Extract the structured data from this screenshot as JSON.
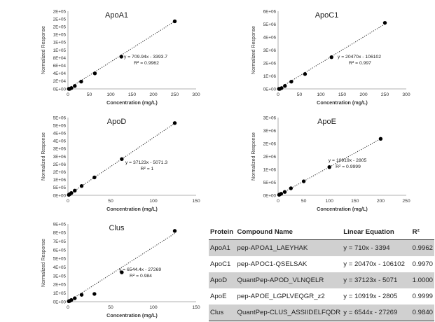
{
  "chart_data": [
    {
      "type": "scatter",
      "title": "ApoA1",
      "xlabel": "Concentration (mg/L)",
      "ylabel": "Normalized Response",
      "xlim": [
        0,
        300
      ],
      "ylim": [
        0,
        200000
      ],
      "x_ticks": [
        "0",
        "50",
        "100",
        "150",
        "200",
        "250",
        "300"
      ],
      "y_ticks": [
        "0E+00",
        "2E+04",
        "4E+04",
        "6E+04",
        "8E+04",
        "1E+05",
        "1E+05",
        "1E+05",
        "2E+05",
        "2E+05",
        "2E+05"
      ],
      "series": [
        {
          "x": [
            2,
            4,
            8,
            16,
            31,
            63,
            125,
            250
          ],
          "y": [
            0,
            0,
            2200,
            7500,
            18800,
            40000,
            83000,
            174000
          ]
        }
      ],
      "trendline": {
        "equation": "y = 709.94x - 3393.7",
        "r2": "R² = 0.9962",
        "slope": 709.94,
        "intercept": -3393.7
      },
      "grid": false
    },
    {
      "type": "scatter",
      "title": "ApoC1",
      "xlabel": "Concentration (mg/L)",
      "ylabel": "Normalized Response",
      "xlim": [
        0,
        300
      ],
      "ylim": [
        0,
        6000000
      ],
      "x_ticks": [
        "0",
        "50",
        "100",
        "150",
        "200",
        "250",
        "300"
      ],
      "y_ticks": [
        "0E+00",
        "1E+06",
        "2E+06",
        "3E+06",
        "4E+06",
        "5E+06",
        "6E+06"
      ],
      "series": [
        {
          "x": [
            2,
            4,
            8,
            16,
            31,
            63,
            125,
            250
          ],
          "y": [
            0,
            0,
            60000,
            230000,
            560000,
            1150000,
            2450000,
            5100000
          ]
        }
      ],
      "trendline": {
        "equation": "y = 20470x - 106102",
        "r2": "R² = 0.997",
        "slope": 20470,
        "intercept": -106102
      },
      "grid": false
    },
    {
      "type": "scatter",
      "title": "ApoD",
      "xlabel": "Concentration (mg/L)",
      "ylabel": "Normalized Response",
      "xlim": [
        0,
        150
      ],
      "ylim": [
        0,
        5000000
      ],
      "x_ticks": [
        "0",
        "50",
        "100",
        "150"
      ],
      "y_ticks": [
        "0E+00",
        "5E+05",
        "1E+06",
        "2E+06",
        "2E+06",
        "3E+06",
        "3E+06",
        "4E+06",
        "4E+06",
        "5E+06",
        "5E+06"
      ],
      "series": [
        {
          "x": [
            1,
            2,
            4,
            8,
            16,
            31,
            63,
            125
          ],
          "y": [
            30000,
            70000,
            150000,
            300000,
            600000,
            1150000,
            2330000,
            4650000
          ]
        }
      ],
      "trendline": {
        "equation": "y = 37123x - 5071.3",
        "r2": "R² = 1",
        "slope": 37123,
        "intercept": -5071.3
      },
      "grid": false
    },
    {
      "type": "scatter",
      "title": "ApoE",
      "xlabel": "Concentration (mg/L)",
      "ylabel": "Normalized Response",
      "xlim": [
        0,
        250
      ],
      "ylim": [
        0,
        3000000
      ],
      "x_ticks": [
        "0",
        "50",
        "100",
        "150",
        "200",
        "250"
      ],
      "y_ticks": [
        "0E+00",
        "5E+05",
        "1E+06",
        "2E+06",
        "2E+06",
        "3E+06",
        "3E+06"
      ],
      "series": [
        {
          "x": [
            2,
            3,
            6,
            13,
            25,
            50,
            100,
            200
          ],
          "y": [
            20000,
            30000,
            60000,
            130000,
            270000,
            540000,
            1090000,
            2180000
          ]
        }
      ],
      "trendline": {
        "equation": "y = 10919x - 2805",
        "r2": "R² = 0.9999",
        "slope": 10919,
        "intercept": -2805
      },
      "grid": false
    },
    {
      "type": "scatter",
      "title": "Clus",
      "xlabel": "Concentration (mg/L)",
      "ylabel": "Normalized Response",
      "xlim": [
        0,
        150
      ],
      "ylim": [
        0,
        900000
      ],
      "x_ticks": [
        "0",
        "50",
        "100",
        "150"
      ],
      "y_ticks": [
        "0E+00",
        "1E+05",
        "2E+05",
        "3E+05",
        "4E+05",
        "5E+05",
        "6E+05",
        "7E+05",
        "8E+05",
        "9E+05"
      ],
      "series": [
        {
          "x": [
            1,
            2,
            4,
            8,
            16,
            31,
            63,
            125
          ],
          "y": [
            5000,
            8000,
            20000,
            40000,
            80000,
            90000,
            340000,
            820000
          ]
        }
      ],
      "trendline": {
        "equation": "y = 6544.4x - 27269",
        "r2": "R² = 0.984",
        "slope": 6544.4,
        "intercept": -27269
      },
      "grid": false
    }
  ],
  "table": {
    "headers": [
      "Protein",
      "Compound Name",
      "Linear Equation",
      "R²"
    ],
    "rows": [
      [
        "ApoA1",
        "pep-APOA1_LAEYHAK",
        "y = 710x - 3394",
        "0.9962"
      ],
      [
        "ApoC1",
        "pep-APOC1-QSELSAK",
        "y = 20470x - 106102",
        "0.9970"
      ],
      [
        "ApoD",
        "QuantPep-APOD_VLNQELR",
        "y = 37123x - 5071",
        "1.0000"
      ],
      [
        "ApoE",
        "pep-APOE_LGPLVEQGR_z2",
        "y = 10919x - 2805",
        "0.9999"
      ],
      [
        "Clus",
        "QuantPep-CLUS_ASSIIDELFQDR",
        "y = 6544x - 27269",
        "0.9840"
      ]
    ]
  },
  "colors": {
    "marker": "#000000",
    "trendline": "#333333",
    "axis": "#999999",
    "table_shade": "#d0d0d0"
  }
}
